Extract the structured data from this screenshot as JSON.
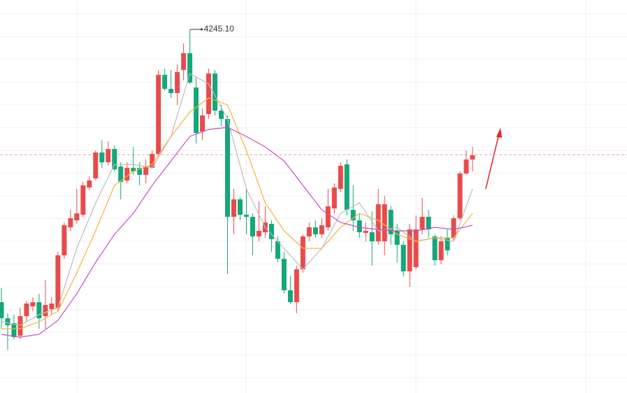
{
  "chart_data": {
    "type": "candlestick",
    "categories": [
      null,
      null,
      null,
      null,
      null,
      null,
      null,
      null,
      null,
      null,
      null,
      null,
      null,
      null,
      null,
      null,
      null,
      null,
      null,
      null,
      null,
      null,
      null,
      null,
      null,
      null,
      null,
      null,
      null,
      null,
      null,
      null,
      null,
      null,
      null,
      null,
      null,
      null,
      null,
      null,
      null,
      null,
      null,
      null,
      null,
      null,
      null,
      null,
      null,
      null,
      null,
      null,
      null,
      null,
      null,
      null,
      null,
      null,
      null,
      null,
      null,
      null,
      null,
      null,
      null,
      null,
      null,
      null,
      null,
      null,
      null,
      null,
      null,
      null,
      null,
      null
    ],
    "open": [
      3855,
      3832,
      3825,
      3807,
      3835,
      3849,
      3855,
      3835,
      3845,
      3847,
      3922,
      3962,
      3972,
      3980,
      4019,
      4032,
      4069,
      4055,
      4074,
      4049,
      4029,
      4047,
      4047,
      4037,
      4047,
      4067,
      4180,
      4160,
      4154,
      4187,
      4211,
      4162,
      4099,
      4124,
      4182,
      4129,
      4117,
      3977,
      4002,
      3980,
      3977,
      3949,
      3955,
      3967,
      3942,
      3917,
      3872,
      3855,
      3902,
      3949,
      3962,
      3952,
      3962,
      3989,
      4017,
      4052,
      3987,
      3972,
      3954,
      3955,
      3942,
      3942,
      3987,
      3957,
      3937,
      3899,
      3905,
      3959,
      3977,
      3949,
      3915,
      3947,
      3947,
      3975,
      4039,
      4059
    ],
    "high": [
      3875,
      3839,
      3837,
      3847,
      3857,
      3862,
      3867,
      3887,
      3862,
      3927,
      3969,
      3987,
      4017,
      4027,
      4035,
      4072,
      4087,
      4085,
      4079,
      4055,
      4055,
      4077,
      4055,
      4059,
      4072,
      4187,
      4189,
      4187,
      4195,
      4225,
      4245.1,
      4177,
      4132,
      4189,
      4187,
      4137,
      4122,
      4017,
      4005,
      4017,
      3982,
      3999,
      3992,
      3972,
      3949,
      3927,
      3892,
      3907,
      3952,
      3969,
      3972,
      3975,
      4017,
      4025,
      4055,
      4059,
      4022,
      3982,
      3969,
      3985,
      4017,
      4007,
      3992,
      3967,
      3942,
      3967,
      3979,
      4004,
      3987,
      3952,
      3949,
      3959,
      3979,
      4042,
      4072,
      4077
    ],
    "low": [
      3817,
      3787,
      3802,
      3802,
      3827,
      3842,
      3817,
      3817,
      3837,
      3842,
      3917,
      3957,
      3967,
      3977,
      4015,
      4029,
      4047,
      4051,
      4042,
      4002,
      4025,
      4037,
      4022,
      4025,
      4047,
      4065,
      4157,
      4147,
      4137,
      4172,
      4167,
      4082,
      4087,
      4117,
      4122,
      4107,
      3895,
      3952,
      3972,
      3952,
      3922,
      3942,
      3947,
      3927,
      3912,
      3867,
      3852,
      3839,
      3897,
      3942,
      3947,
      3947,
      3957,
      3982,
      4012,
      3979,
      3957,
      3947,
      3942,
      3907,
      3937,
      3922,
      3937,
      3912,
      3892,
      3877,
      3902,
      3952,
      3947,
      3907,
      3909,
      3922,
      3942,
      3972,
      4037,
      4042
    ],
    "close": [
      3832,
      3822,
      3805,
      3835,
      3853,
      3855,
      3832,
      3851,
      3853,
      3922,
      3965,
      3975,
      3982,
      4022,
      4029,
      4069,
      4055,
      4074,
      4045,
      4027,
      4047,
      4042,
      4037,
      4049,
      4067,
      4180,
      4160,
      4154,
      4184,
      4211,
      4169,
      4097,
      4122,
      4182,
      4129,
      4117,
      3977,
      4002,
      3980,
      3977,
      3949,
      3957,
      3969,
      3945,
      3917,
      3872,
      3855,
      3902,
      3949,
      3962,
      3952,
      3965,
      3992,
      4019,
      4050,
      3987,
      3972,
      3955,
      3957,
      3942,
      3995,
      3995,
      3952,
      3937,
      3899,
      3959,
      3959,
      3977,
      3959,
      3915,
      3942,
      3929,
      3975,
      4039,
      4059,
      4065
    ],
    "up_color": "#e84b4b",
    "down_color": "#13a77a",
    "series": [
      {
        "color": "#bdbdbd",
        "x": [
          0,
          3,
          6,
          9,
          12,
          15,
          18,
          21,
          24,
          27,
          30,
          33,
          36,
          39,
          42,
          45,
          48,
          51,
          54,
          57,
          60,
          63,
          66,
          69,
          72,
          75
        ],
        "values": [
          3827,
          3822,
          3837,
          3847,
          3932,
          3997,
          4052,
          4052,
          4047,
          4092,
          4182,
          4167,
          4117,
          4017,
          3962,
          3932,
          3902,
          3932,
          3982,
          3997,
          3957,
          3962,
          3942,
          3947,
          3942,
          4017
        ]
      },
      {
        "color": "#f5b342",
        "x": [
          0,
          3,
          6,
          9,
          12,
          15,
          18,
          21,
          24,
          27,
          30,
          33,
          36,
          39,
          42,
          45,
          48,
          51,
          54,
          57,
          60,
          63,
          66,
          69,
          72,
          75
        ],
        "values": [
          3817,
          3817,
          3827,
          3842,
          3897,
          3957,
          4022,
          4042,
          4052,
          4092,
          4127,
          4147,
          4137,
          4072,
          3997,
          3957,
          3932,
          3932,
          3962,
          3982,
          3972,
          3952,
          3942,
          3947,
          3947,
          3982
        ]
      },
      {
        "color": "#c44fc4",
        "x": [
          0,
          3,
          6,
          9,
          12,
          15,
          18,
          21,
          24,
          27,
          30,
          33,
          36,
          39,
          42,
          45,
          48,
          51,
          54,
          57,
          60,
          63,
          66,
          69,
          72,
          75
        ],
        "values": [
          3809,
          3805,
          3809,
          3829,
          3867,
          3912,
          3952,
          3982,
          4022,
          4057,
          4092,
          4102,
          4105,
          4092,
          4077,
          4057,
          4022,
          3987,
          3969,
          3962,
          3959,
          3957,
          3957,
          3962,
          3959,
          3965
        ]
      }
    ],
    "ref_line": {
      "value": 4066,
      "color": "#f0a0a0"
    },
    "annotations": [
      {
        "index": 30,
        "value": 4245.1,
        "text": "4245.10"
      }
    ],
    "ylim": [
      3725.1,
      4287.1
    ]
  }
}
